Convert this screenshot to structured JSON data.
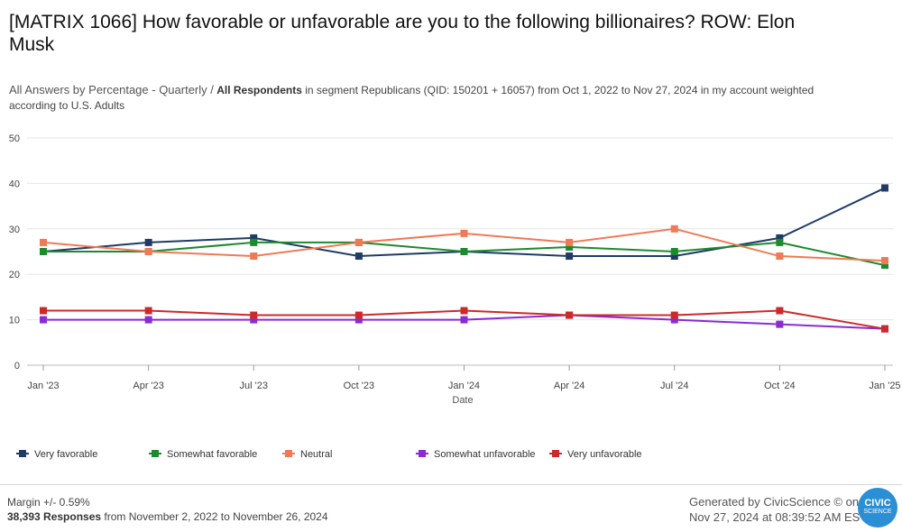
{
  "header": {
    "title": "[MATRIX 1066] How favorable or unfavorable are you to the following billionaires? ROW: Elon Musk",
    "subtitle_lead": "All Answers by Percentage - Quarterly /",
    "subtitle_bold": "All Respondents",
    "subtitle_rest": " in segment Republicans (QID: 150201 + 16057) from Oct 1, 2022 to Nov 27, 2024 in my account weighted according to U.S. Adults"
  },
  "chart_data": {
    "type": "line",
    "title": "",
    "xlabel": "Date",
    "ylabel": "",
    "ylim": [
      0,
      50
    ],
    "yticks": [
      "0",
      "10",
      "20",
      "30",
      "40",
      "50"
    ],
    "categories": [
      "Jan '23",
      "Apr '23",
      "Jul '23",
      "Oct '23",
      "Jan '24",
      "Apr '24",
      "Jul '24",
      "Oct '24",
      "Jan '25"
    ],
    "series": [
      {
        "name": "Very favorable",
        "color": "#1f3b66",
        "values": [
          25,
          27,
          28,
          24,
          25,
          24,
          24,
          28,
          39
        ]
      },
      {
        "name": "Somewhat favorable",
        "color": "#1e8a2f",
        "values": [
          25,
          25,
          27,
          27,
          25,
          26,
          25,
          27,
          22
        ]
      },
      {
        "name": "Neutral",
        "color": "#f07a55",
        "values": [
          27,
          25,
          24,
          27,
          29,
          27,
          30,
          24,
          23
        ]
      },
      {
        "name": "Somewhat unfavorable",
        "color": "#8a2bd4",
        "values": [
          10,
          10,
          10,
          10,
          10,
          11,
          10,
          9,
          8
        ]
      },
      {
        "name": "Very unfavorable",
        "color": "#cc2a2a",
        "values": [
          12,
          12,
          11,
          11,
          12,
          11,
          11,
          12,
          8
        ]
      }
    ],
    "legend_position": "bottom"
  },
  "footer": {
    "margin": "Margin +/- 0.59%",
    "responses_bold": "38,393 Responses",
    "responses_rest": " from November 2, 2022 to November 26, 2024",
    "generated": "Generated by CivicScience © on",
    "generated_time": "Nov 27, 2024 at 08:39:52 AM EST",
    "logo_line1": "CIVIC",
    "logo_line2": "SCIENCE"
  }
}
